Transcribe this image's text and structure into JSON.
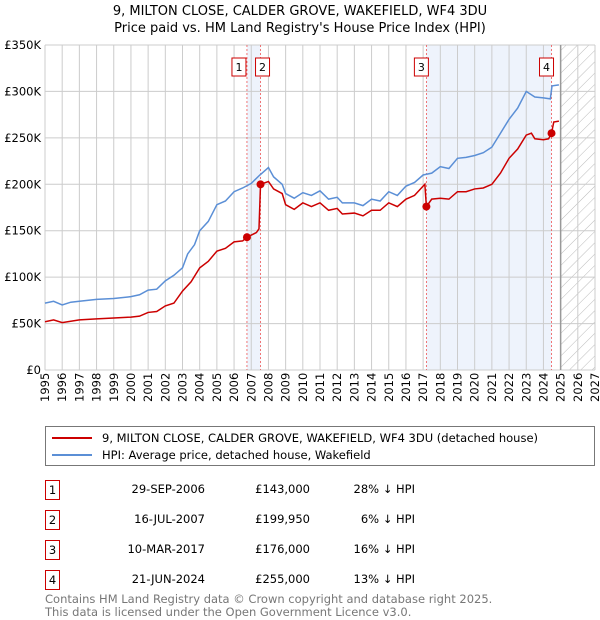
{
  "chart_data": {
    "type": "line",
    "title": "9, MILTON CLOSE, CALDER GROVE, WAKEFIELD, WF4 3DU",
    "subtitle": "Price paid vs. HM Land Registry's House Price Index (HPI)",
    "xlim": [
      1995,
      2027
    ],
    "ylim": [
      0,
      350000
    ],
    "x_ticks": [
      "1995",
      "1996",
      "1997",
      "1998",
      "1999",
      "2000",
      "2001",
      "2002",
      "2003",
      "2004",
      "2005",
      "2006",
      "2007",
      "2008",
      "2009",
      "2010",
      "2011",
      "2012",
      "2013",
      "2014",
      "2015",
      "2016",
      "2017",
      "2018",
      "2019",
      "2020",
      "2021",
      "2022",
      "2023",
      "2024",
      "2025",
      "2026",
      "2027"
    ],
    "y_ticks": [
      {
        "v": 0,
        "label": "£0"
      },
      {
        "v": 50000,
        "label": "£50K"
      },
      {
        "v": 100000,
        "label": "£100K"
      },
      {
        "v": 150000,
        "label": "£150K"
      },
      {
        "v": 200000,
        "label": "£200K"
      },
      {
        "v": 250000,
        "label": "£250K"
      },
      {
        "v": 300000,
        "label": "£300K"
      },
      {
        "v": 350000,
        "label": "£350K"
      }
    ],
    "grid": true,
    "forecast_from": 2025,
    "series": [
      {
        "name": "9, MILTON CLOSE, CALDER GROVE, WAKEFIELD, WF4 3DU (detached house)",
        "color": "#cc0000",
        "x": [
          1995,
          1995.5,
          1996,
          1997,
          1998,
          1999,
          2000,
          2000.5,
          2001,
          2001.5,
          2002,
          2002.5,
          2003,
          2003.5,
          2004,
          2004.5,
          2005,
          2005.5,
          2006,
          2006.5,
          2006.75,
          2007.3,
          2007.45,
          2007.54,
          2008,
          2008.3,
          2008.8,
          2009,
          2009.5,
          2010,
          2010.5,
          2011,
          2011.5,
          2012,
          2012.3,
          2013,
          2013.5,
          2014,
          2014.5,
          2015,
          2015.5,
          2016,
          2016.5,
          2017.1,
          2017.19,
          2017.5,
          2018,
          2018.5,
          2019,
          2019.5,
          2020,
          2020.5,
          2021,
          2021.5,
          2022,
          2022.5,
          2023,
          2023.3,
          2023.5,
          2024,
          2024.3,
          2024.47,
          2024.6,
          2024.9
        ],
        "y": [
          52000,
          54000,
          51000,
          54000,
          55000,
          56000,
          57000,
          58000,
          62000,
          63000,
          69000,
          72000,
          85000,
          95000,
          110000,
          117000,
          128000,
          131000,
          138000,
          139000,
          143000,
          148000,
          152000,
          200000,
          203000,
          195000,
          190000,
          178000,
          173000,
          180000,
          176000,
          180000,
          172000,
          174000,
          168000,
          169000,
          166000,
          172000,
          172000,
          180000,
          176000,
          184000,
          188000,
          200000,
          176000,
          184000,
          185000,
          184000,
          192000,
          192000,
          195000,
          196000,
          200000,
          212000,
          228000,
          238000,
          253000,
          255000,
          249000,
          248000,
          249000,
          255000,
          267000,
          268000
        ]
      },
      {
        "name": "HPI: Average price, detached house, Wakefield",
        "color": "#5b8fd6",
        "x": [
          1995,
          1995.5,
          1996,
          1996.5,
          1997,
          1998,
          1999,
          2000,
          2000.5,
          2001,
          2001.5,
          2002,
          2002.5,
          2003,
          2003.3,
          2003.7,
          2004,
          2004.5,
          2005,
          2005.5,
          2006,
          2006.5,
          2007,
          2007.5,
          2008,
          2008.3,
          2008.8,
          2009,
          2009.5,
          2010,
          2010.5,
          2011,
          2011.5,
          2012,
          2012.3,
          2013,
          2013.5,
          2014,
          2014.5,
          2015,
          2015.5,
          2016,
          2016.5,
          2017,
          2017.5,
          2018,
          2018.5,
          2019,
          2019.5,
          2020,
          2020.5,
          2021,
          2021.5,
          2022,
          2022.5,
          2023,
          2023.5,
          2024,
          2024.4,
          2024.5,
          2024.9
        ],
        "y": [
          72000,
          74000,
          70000,
          73000,
          74000,
          76000,
          77000,
          79000,
          81000,
          86000,
          87000,
          96000,
          102000,
          110000,
          125000,
          135000,
          150000,
          160000,
          178000,
          182000,
          192000,
          196000,
          201000,
          210000,
          218000,
          208000,
          200000,
          190000,
          185000,
          191000,
          188000,
          193000,
          184000,
          186000,
          180000,
          180000,
          177000,
          184000,
          182000,
          192000,
          188000,
          198000,
          202000,
          210000,
          212000,
          219000,
          217000,
          228000,
          229000,
          231000,
          234000,
          240000,
          255000,
          270000,
          282000,
          300000,
          294000,
          293000,
          292000,
          306000,
          307000
        ]
      }
    ],
    "sales": [
      {
        "n": "1",
        "x": 2006.75,
        "y": 143000,
        "date": "29-SEP-2006",
        "price": "£143,000",
        "hpi": "28% ↓ HPI"
      },
      {
        "n": "2",
        "x": 2007.54,
        "y": 199950,
        "date": "16-JUL-2007",
        "price": "£199,950",
        "hpi": "6% ↓ HPI"
      },
      {
        "n": "3",
        "x": 2017.19,
        "y": 176000,
        "date": "10-MAR-2017",
        "price": "£176,000",
        "hpi": "16% ↓ HPI"
      },
      {
        "n": "4",
        "x": 2024.47,
        "y": 255000,
        "date": "21-JUN-2024",
        "price": "£255,000",
        "hpi": "13% ↓ HPI"
      }
    ]
  },
  "legend": {
    "property": "9, MILTON CLOSE, CALDER GROVE, WAKEFIELD, WF4 3DU (detached house)",
    "hpi": "HPI: Average price, detached house, Wakefield"
  },
  "footer": {
    "line1": "Contains HM Land Registry data © Crown copyright and database right 2025.",
    "line2": "This data is licensed under the Open Government Licence v3.0."
  }
}
